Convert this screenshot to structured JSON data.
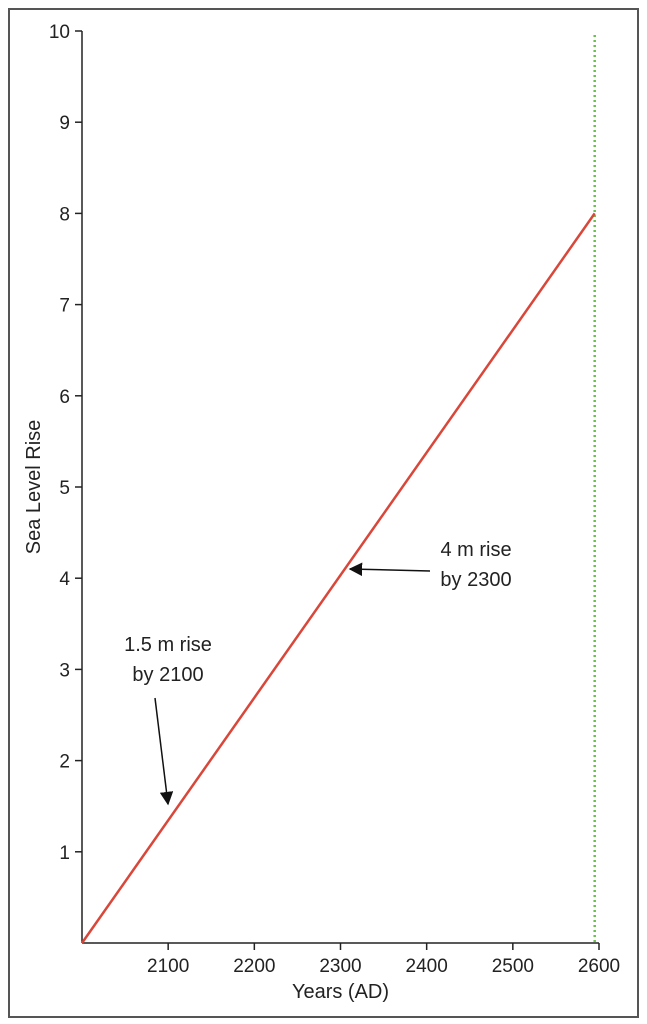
{
  "chart_data": {
    "type": "line",
    "title": "",
    "xlabel": "Years (AD)",
    "ylabel": "Sea Level Rise",
    "xlim": [
      2000,
      2600
    ],
    "ylim": [
      0,
      10
    ],
    "xticks": [
      2100,
      2200,
      2300,
      2400,
      2500,
      2600
    ],
    "yticks": [
      1,
      2,
      3,
      4,
      5,
      6,
      7,
      8,
      9,
      10
    ],
    "grid": false,
    "legend": "none",
    "series": [
      {
        "x": [
          2000,
          2595
        ],
        "y": [
          0,
          8
        ],
        "color": "#d9473a"
      }
    ],
    "reference_line": {
      "x": 2595,
      "color": "#66c24a",
      "style": "dotted"
    },
    "annotations": [
      {
        "lines": [
          "1.5 m rise",
          "by 2100"
        ],
        "x": 2100,
        "y": 1.5
      },
      {
        "lines": [
          "4 m rise",
          "by 2300"
        ],
        "x": 2305,
        "y": 4.1
      }
    ]
  }
}
